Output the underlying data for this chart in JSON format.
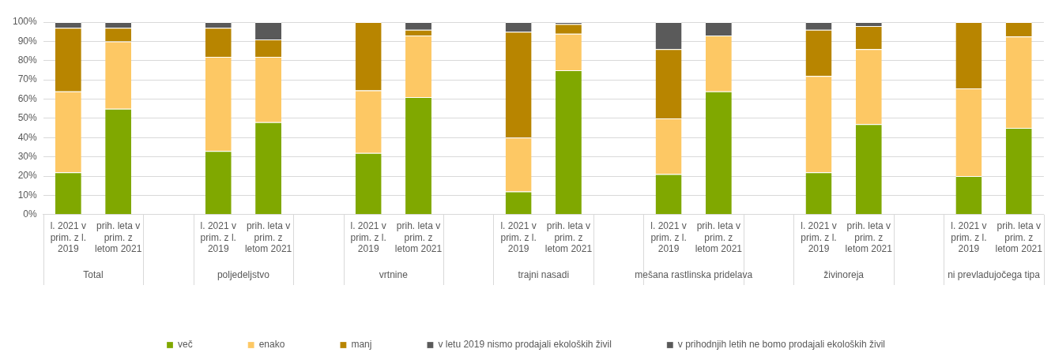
{
  "chart_data": {
    "type": "bar",
    "stacked": true,
    "categories": [
      "l. 2021 v prim. z l. 2019",
      "prih. leta v prim. z letom 2021",
      null,
      "l. 2021 v prim. z l. 2019",
      "prih. leta v prim. z letom 2021",
      null,
      "l. 2021 v prim. z l. 2019",
      "prih. leta v prim. z letom 2021",
      null,
      "l. 2021 v prim. z l. 2019",
      "prih. leta v prim. z letom 2021",
      null,
      "l. 2021 v prim. z l. 2019",
      "prih. leta v prim. z letom 2021",
      null,
      "l. 2021 v prim. z l. 2019",
      "prih. leta v prim. z letom 2021",
      null,
      "l. 2021 v prim. z l. 2019",
      "prih. leta v prim. z letom 2021"
    ],
    "series": [
      {
        "name": "več",
        "color": "#80a800",
        "values": [
          22,
          55,
          null,
          33,
          48,
          null,
          32,
          61,
          null,
          12,
          75,
          null,
          21,
          64,
          null,
          22,
          47,
          null,
          20,
          45
        ]
      },
      {
        "name": "enako",
        "color": "#fdc864",
        "values": [
          42,
          35,
          null,
          49,
          34,
          null,
          32.5,
          32,
          null,
          28,
          19,
          null,
          29,
          29,
          null,
          50,
          39,
          null,
          45.5,
          47.5
        ]
      },
      {
        "name": "manj",
        "color": "#b88500",
        "values": [
          33,
          7,
          null,
          15,
          9,
          null,
          35.5,
          3,
          null,
          55,
          5,
          null,
          36,
          0,
          null,
          24,
          12,
          null,
          34.5,
          7.5
        ]
      },
      {
        "name": "v letu 2019 nismo prodajali ekoloških živil",
        "color": "#5a5a5a",
        "values": [
          3,
          null,
          null,
          3,
          null,
          null,
          0,
          null,
          null,
          5,
          null,
          null,
          14,
          null,
          null,
          4,
          null,
          null,
          0,
          null
        ]
      },
      {
        "name": "v prihodnjih letih ne bomo prodajali ekoloških živil",
        "color": "#595959",
        "values": [
          null,
          3,
          null,
          null,
          9,
          null,
          null,
          4,
          null,
          null,
          1,
          null,
          null,
          7,
          null,
          null,
          2,
          null,
          null,
          0
        ]
      }
    ],
    "annotations": [
      "Total",
      "poljedeljstvo",
      "vrtnine",
      "trajni nasadi",
      "mešana rastlinska pridelava",
      "živinoreja",
      "ni prevladujočega tipa"
    ],
    "ylim": [
      0,
      100
    ],
    "yticks": [
      {
        "value": 0,
        "label": "0%"
      },
      {
        "value": 10,
        "label": "10%"
      },
      {
        "value": 20,
        "label": "20%"
      },
      {
        "value": 30,
        "label": "30%"
      },
      {
        "value": 40,
        "label": "40%"
      },
      {
        "value": 50,
        "label": "50%"
      },
      {
        "value": 60,
        "label": "60%"
      },
      {
        "value": 70,
        "label": "70%"
      },
      {
        "value": 80,
        "label": "80%"
      },
      {
        "value": 90,
        "label": "90%"
      },
      {
        "value": 100,
        "label": "100%"
      }
    ],
    "grid": "y",
    "legend": "bottom"
  }
}
